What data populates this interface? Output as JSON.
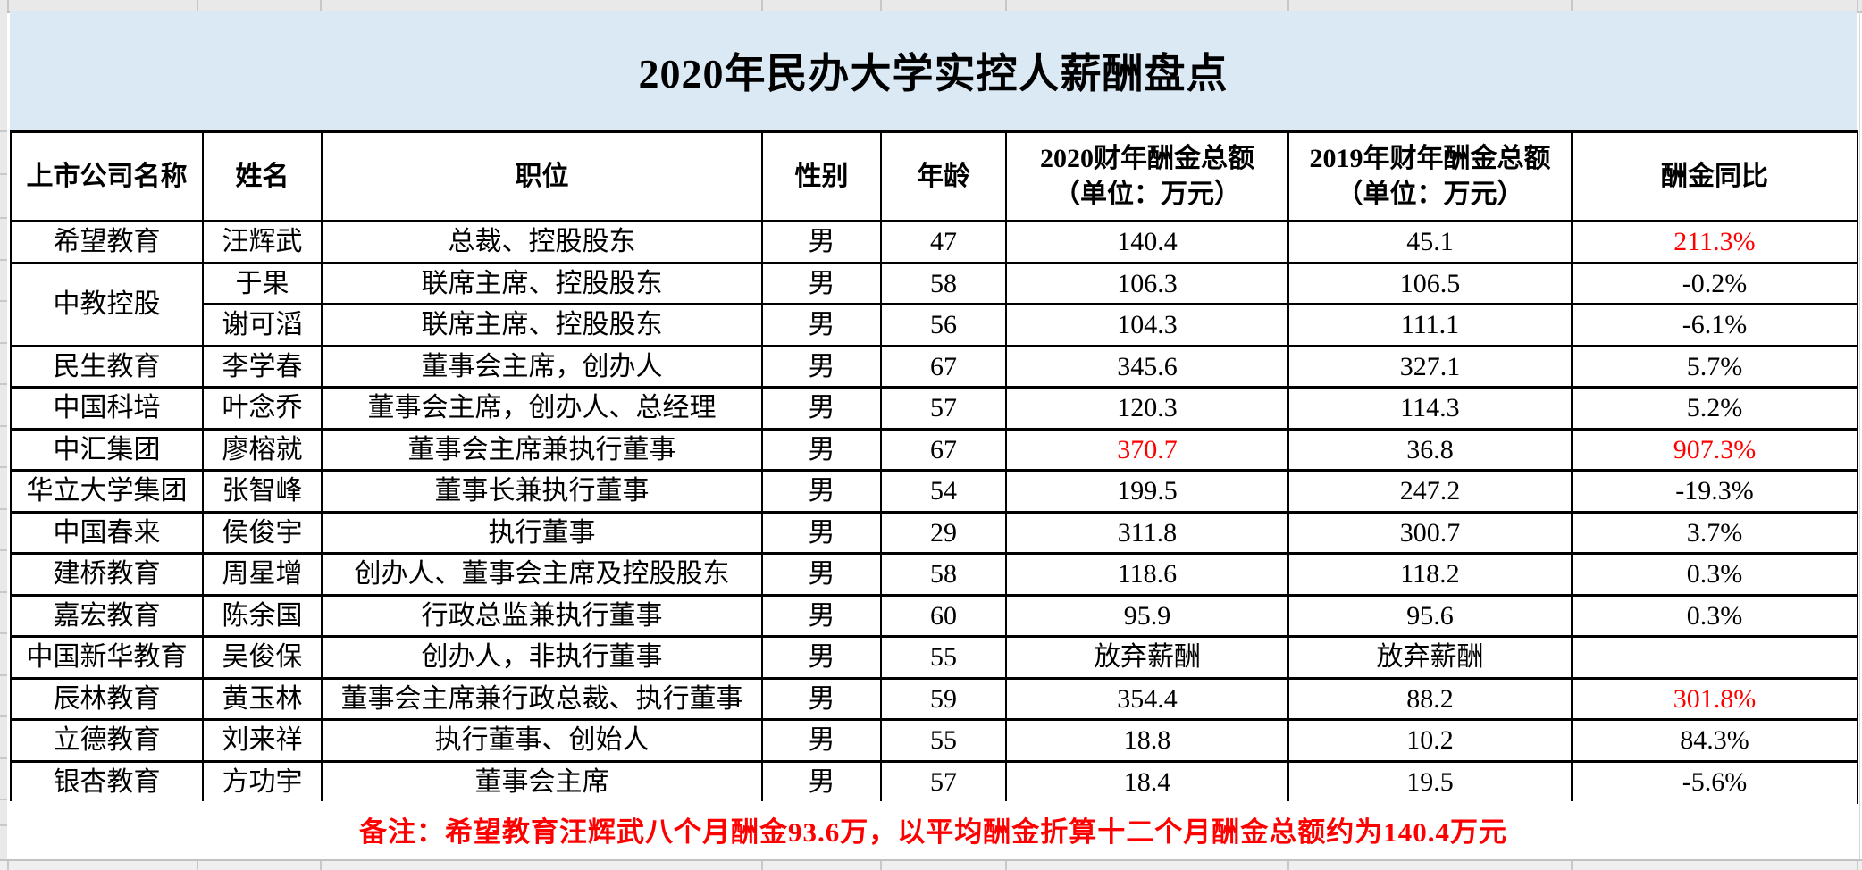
{
  "title": "2020年民办大学实控人薪酬盘点",
  "note": "备注：希望教育汪辉武八个月酬金93.6万，以平均酬金折算十二个月酬金总额约为140.4万元",
  "colors": {
    "accent_red": "#fe0000",
    "title_band_blue": "#dbe9f5",
    "grid_gray": "#c8c8c8",
    "chrome_gray": "#e9e9e9"
  },
  "table": {
    "columns": [
      {
        "label": "上市公司名称"
      },
      {
        "label": "姓名"
      },
      {
        "label": "职位"
      },
      {
        "label": "性别"
      },
      {
        "label": "年龄"
      },
      {
        "label": "2020财年酬金总额",
        "sub": "（单位：万元）"
      },
      {
        "label": "2019年财年酬金总额",
        "sub": "（单位：万元）"
      },
      {
        "label": "酬金同比"
      }
    ],
    "rows": [
      {
        "company": "希望教育",
        "company_rowspan": 1,
        "name": "汪辉武",
        "position": "总裁、控股股东",
        "gender": "男",
        "age": "47",
        "pay2020": "140.4",
        "pay2019": "45.1",
        "yoy": "211.3%",
        "red": [
          "yoy"
        ]
      },
      {
        "company": "中教控股",
        "company_rowspan": 2,
        "name": "于果",
        "position": "联席主席、控股股东",
        "gender": "男",
        "age": "58",
        "pay2020": "106.3",
        "pay2019": "106.5",
        "yoy": "-0.2%",
        "red": []
      },
      {
        "company": null,
        "name": "谢可滔",
        "position": "联席主席、控股股东",
        "gender": "男",
        "age": "56",
        "pay2020": "104.3",
        "pay2019": "111.1",
        "yoy": "-6.1%",
        "red": []
      },
      {
        "company": "民生教育",
        "company_rowspan": 1,
        "name": "李学春",
        "position": "董事会主席，创办人",
        "gender": "男",
        "age": "67",
        "pay2020": "345.6",
        "pay2019": "327.1",
        "yoy": "5.7%",
        "red": []
      },
      {
        "company": "中国科培",
        "company_rowspan": 1,
        "name": "叶念乔",
        "position": "董事会主席，创办人、总经理",
        "gender": "男",
        "age": "57",
        "pay2020": "120.3",
        "pay2019": "114.3",
        "yoy": "5.2%",
        "red": []
      },
      {
        "company": "中汇集团",
        "company_rowspan": 1,
        "name": "廖榕就",
        "position": "董事会主席兼执行董事",
        "gender": "男",
        "age": "67",
        "pay2020": "370.7",
        "pay2019": "36.8",
        "yoy": "907.3%",
        "red": [
          "pay2020",
          "yoy"
        ]
      },
      {
        "company": "华立大学集团",
        "company_rowspan": 1,
        "name": "张智峰",
        "position": "董事长兼执行董事",
        "gender": "男",
        "age": "54",
        "pay2020": "199.5",
        "pay2019": "247.2",
        "yoy": "-19.3%",
        "red": []
      },
      {
        "company": "中国春来",
        "company_rowspan": 1,
        "name": "侯俊宇",
        "position": "执行董事",
        "gender": "男",
        "age": "29",
        "pay2020": "311.8",
        "pay2019": "300.7",
        "yoy": "3.7%",
        "red": []
      },
      {
        "company": "建桥教育",
        "company_rowspan": 1,
        "name": "周星增",
        "position": "创办人、董事会主席及控股股东",
        "gender": "男",
        "age": "58",
        "pay2020": "118.6",
        "pay2019": "118.2",
        "yoy": "0.3%",
        "red": []
      },
      {
        "company": "嘉宏教育",
        "company_rowspan": 1,
        "name": "陈余国",
        "position": "行政总监兼执行董事",
        "gender": "男",
        "age": "60",
        "pay2020": "95.9",
        "pay2019": "95.6",
        "yoy": "0.3%",
        "red": []
      },
      {
        "company": "中国新华教育",
        "company_rowspan": 1,
        "name": "吴俊保",
        "position": "创办人，非执行董事",
        "gender": "男",
        "age": "55",
        "pay2020": "放弃薪酬",
        "pay2019": "放弃薪酬",
        "yoy": "",
        "red": []
      },
      {
        "company": "辰林教育",
        "company_rowspan": 1,
        "name": "黄玉林",
        "position": "董事会主席兼行政总裁、执行董事",
        "gender": "男",
        "age": "59",
        "pay2020": "354.4",
        "pay2019": "88.2",
        "yoy": "301.8%",
        "red": [
          "yoy"
        ]
      },
      {
        "company": "立德教育",
        "company_rowspan": 1,
        "name": "刘来祥",
        "position": "执行董事、创始人",
        "gender": "男",
        "age": "55",
        "pay2020": "18.8",
        "pay2019": "10.2",
        "yoy": "84.3%",
        "red": []
      },
      {
        "company": "银杏教育",
        "company_rowspan": 1,
        "name": "方功宇",
        "position": "董事会主席",
        "gender": "男",
        "age": "57",
        "pay2020": "18.4",
        "pay2019": "19.5",
        "yoy": "-5.6%",
        "red": []
      }
    ]
  }
}
